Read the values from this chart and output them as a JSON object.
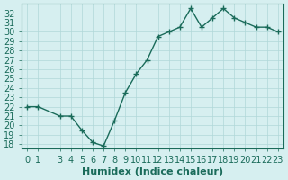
{
  "x": [
    0,
    1,
    3,
    4,
    5,
    6,
    7,
    8,
    9,
    10,
    11,
    12,
    13,
    14,
    15,
    16,
    17,
    18,
    19,
    20,
    21,
    22,
    23
  ],
  "y": [
    22,
    22,
    21,
    21,
    19.5,
    18.2,
    17.8,
    20.5,
    23.5,
    25.5,
    27,
    29.5,
    30,
    30.5,
    32.5,
    30.5,
    31.5,
    32.5,
    31.5,
    31,
    30.5,
    30.5,
    30
  ],
  "xlabel": "Humidex (Indice chaleur)",
  "xlim": [
    -0.5,
    23.5
  ],
  "ylim": [
    17.5,
    33
  ],
  "yticks": [
    18,
    19,
    20,
    21,
    22,
    23,
    24,
    25,
    26,
    27,
    28,
    29,
    30,
    31,
    32
  ],
  "xticks": [
    0,
    1,
    3,
    4,
    5,
    6,
    7,
    8,
    9,
    10,
    11,
    12,
    13,
    14,
    15,
    16,
    17,
    18,
    19,
    20,
    21,
    22,
    23
  ],
  "line_color": "#1a6b5a",
  "marker": "+",
  "bg_color": "#d6eff0",
  "grid_color": "#b0d8d8",
  "tick_label_color": "#1a6b5a",
  "xlabel_color": "#1a6b5a",
  "font_size": 7
}
